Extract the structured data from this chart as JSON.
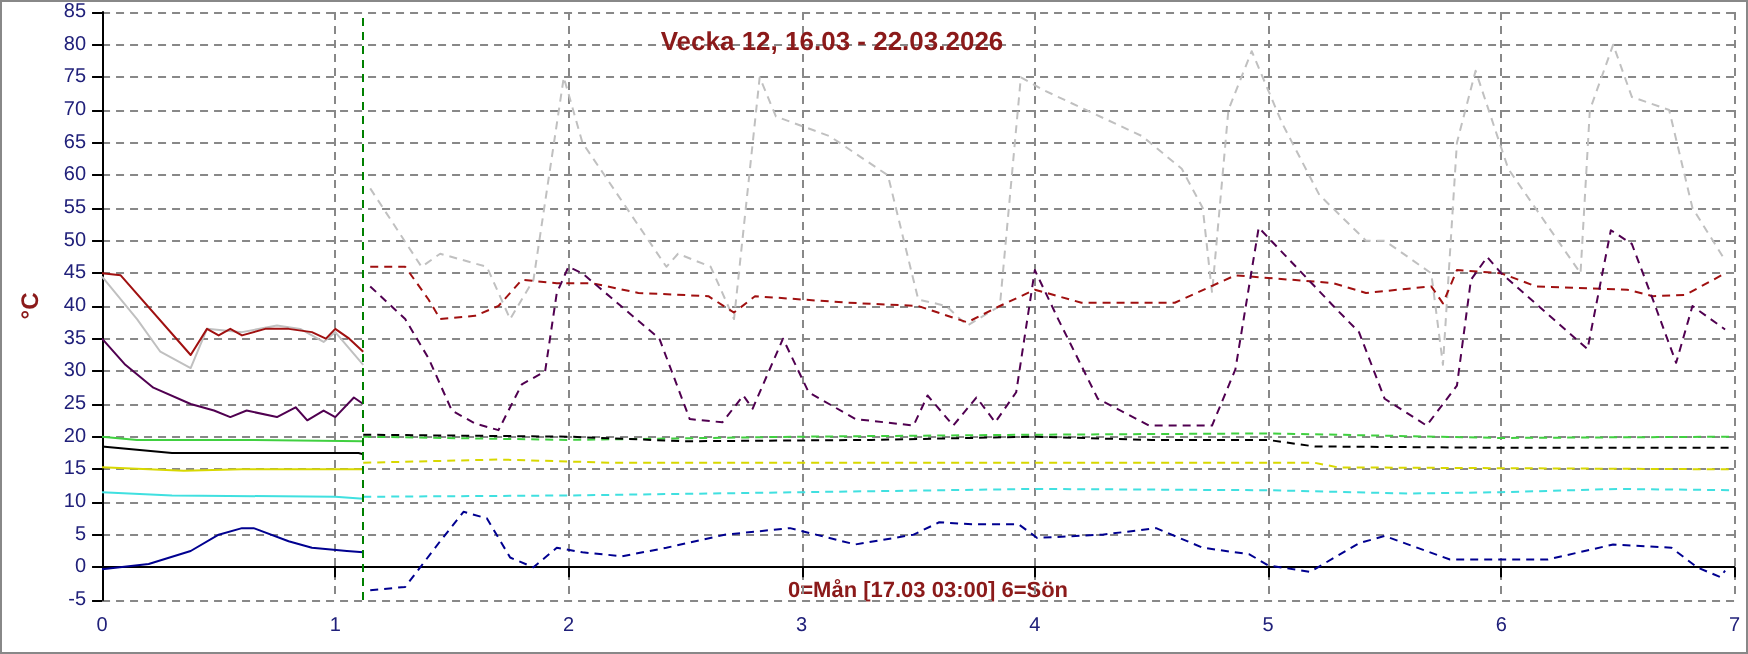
{
  "chart_data": {
    "type": "line",
    "title": "Vecka 12, 16.03 - 22.03.2026",
    "ylabel": "°C",
    "annotations": [
      "0=Mån [17.03 03:00] 6=Sön"
    ],
    "xlim": [
      0,
      7
    ],
    "xticks": [
      0,
      1,
      2,
      3,
      4,
      5,
      6,
      7
    ],
    "ylim": [
      -5,
      85
    ],
    "yticks": [
      -5,
      0,
      5,
      10,
      15,
      20,
      25,
      30,
      35,
      40,
      45,
      50,
      55,
      60,
      65,
      70,
      75,
      80,
      85
    ],
    "grid": true,
    "marker": "none",
    "ref_lines": [
      {
        "axis": "x",
        "value": 1.12,
        "label": null,
        "color": "#008000",
        "line_style": "dashed"
      }
    ],
    "series": [
      {
        "color": "#c0c0c0",
        "line_style": "solid",
        "x": [
          0,
          0.15,
          0.25,
          0.38,
          0.45,
          0.6,
          0.75,
          0.85,
          0.95,
          1.0,
          1.12
        ],
        "values": [
          44.5,
          38,
          33,
          30.5,
          36.5,
          36,
          37,
          36.5,
          34.5,
          36,
          31
        ]
      },
      {
        "color": "#a01010",
        "line_style": "solid",
        "x": [
          0,
          0.08,
          0.38,
          0.45,
          0.5,
          0.55,
          0.6,
          0.7,
          0.8,
          0.9,
          0.96,
          1.0,
          1.06,
          1.12
        ],
        "values": [
          45,
          44.7,
          32.5,
          36.5,
          35.5,
          36.5,
          35.5,
          36.5,
          36.5,
          36,
          35,
          36.5,
          35,
          33
        ]
      },
      {
        "color": "#500050",
        "line_style": "solid",
        "x": [
          0,
          0.1,
          0.22,
          0.38,
          0.48,
          0.55,
          0.62,
          0.75,
          0.83,
          0.88,
          0.95,
          1.0,
          1.08,
          1.12
        ],
        "values": [
          35,
          31,
          27.5,
          25,
          24,
          23,
          24,
          23,
          24.5,
          22.5,
          24,
          23,
          26,
          25
        ]
      },
      {
        "color": "#40d040",
        "line_style": "solid",
        "x": [
          0,
          0.15,
          0.6,
          1.12
        ],
        "values": [
          20,
          19.5,
          19.5,
          19.3
        ]
      },
      {
        "color": "#000000",
        "line_style": "solid",
        "x": [
          0,
          0.3,
          1.1,
          1.12
        ],
        "values": [
          18.5,
          17.5,
          17.5,
          17.3
        ]
      },
      {
        "color": "#d8d800",
        "line_style": "solid",
        "x": [
          0,
          0.35,
          0.6,
          1.12
        ],
        "values": [
          15.3,
          14.8,
          15,
          15
        ]
      },
      {
        "color": "#40e0e0",
        "line_style": "solid",
        "x": [
          0,
          0.3,
          1.0,
          1.12
        ],
        "values": [
          11.5,
          11,
          10.8,
          10.5
        ]
      },
      {
        "color": "#000090",
        "line_style": "solid",
        "x": [
          0,
          0.2,
          0.38,
          0.5,
          0.6,
          0.65,
          0.8,
          0.9,
          1.05,
          1.12
        ],
        "values": [
          -0.3,
          0.5,
          2.5,
          5,
          6,
          6,
          4,
          3,
          2.5,
          2.3
        ]
      },
      {
        "color": "#c0c0c0",
        "line_style": "dashed",
        "x": [
          1.15,
          1.37,
          1.45,
          1.65,
          1.75,
          1.85,
          1.98,
          2.06,
          2.42,
          2.47,
          2.61,
          2.71,
          2.82,
          2.89,
          3.12,
          3.37,
          3.5,
          3.62,
          3.71,
          3.85,
          3.94,
          4.04,
          4.46,
          4.63,
          4.72,
          4.76,
          4.83,
          4.93,
          5.06,
          5.22,
          5.42,
          5.5,
          5.7,
          5.75,
          5.81,
          5.89,
          6.03,
          6.34,
          6.38,
          6.48,
          6.56,
          6.72,
          6.82,
          6.96
        ],
        "values": [
          58,
          46,
          48,
          46,
          38,
          44,
          75,
          65,
          46,
          48,
          46,
          38,
          75,
          69,
          66,
          60,
          41,
          40,
          37,
          40,
          75,
          73,
          66,
          61,
          55,
          42,
          70,
          79,
          68,
          57,
          50,
          50,
          45,
          31,
          65,
          76,
          61,
          45,
          70,
          80,
          72,
          70,
          55,
          47
        ]
      },
      {
        "color": "#a01010",
        "line_style": "dashed",
        "x": [
          1.15,
          1.3,
          1.4,
          1.45,
          1.6,
          1.7,
          1.8,
          1.95,
          2.1,
          2.3,
          2.6,
          2.71,
          2.8,
          3.0,
          3.2,
          3.5,
          3.71,
          3.85,
          4.0,
          4.2,
          4.6,
          4.86,
          5.28,
          5.42,
          5.7,
          5.75,
          5.81,
          6.0,
          6.15,
          6.54,
          6.65,
          6.79,
          6.96
        ],
        "values": [
          46,
          46,
          41,
          38,
          38.5,
          40,
          44,
          43.5,
          43.5,
          42,
          41.5,
          39,
          41.5,
          41,
          40.5,
          40,
          37.5,
          40,
          42.5,
          40.5,
          40.5,
          44.7,
          43.5,
          42,
          43,
          40.4,
          45.5,
          45,
          43,
          42.5,
          41.5,
          41.7,
          45
        ]
      },
      {
        "color": "#500050",
        "line_style": "dashed",
        "x": [
          1.15,
          1.3,
          1.4,
          1.5,
          1.6,
          1.7,
          1.8,
          1.9,
          1.95,
          2.0,
          2.06,
          2.39,
          2.52,
          2.66,
          2.75,
          2.79,
          2.92,
          3.03,
          3.23,
          3.48,
          3.54,
          3.65,
          3.75,
          3.83,
          3.92,
          4.0,
          4.1,
          4.27,
          4.49,
          4.76,
          4.86,
          4.96,
          5.28,
          5.39,
          5.5,
          5.68,
          5.81,
          5.87,
          5.94,
          6.0,
          6.37,
          6.47,
          6.56,
          6.65,
          6.75,
          6.82,
          6.96
        ],
        "values": [
          43,
          38,
          32,
          24,
          22,
          21,
          28,
          30,
          42,
          46,
          45,
          35,
          22.7,
          22.2,
          26.3,
          24.3,
          35,
          26.8,
          22.7,
          21.7,
          26.3,
          21.7,
          26,
          22.2,
          26.8,
          45.5,
          38,
          25.8,
          21.7,
          21.7,
          30.3,
          52,
          40,
          36,
          25.8,
          21.7,
          27.8,
          44,
          47.5,
          45,
          33.4,
          51.6,
          49.5,
          41,
          31.3,
          40,
          36.4
        ]
      },
      {
        "color": "#40d040",
        "line_style": "dashed",
        "x": [
          1.12,
          2,
          3,
          4,
          5,
          6,
          7
        ],
        "values": [
          20,
          19.5,
          20,
          20.3,
          20.5,
          19.8,
          20
        ]
      },
      {
        "color": "#000000",
        "line_style": "dashed",
        "x": [
          1.12,
          2,
          2.5,
          3.3,
          4,
          4.5,
          5,
          5.2,
          6,
          7
        ],
        "values": [
          20.3,
          20,
          19.3,
          19.5,
          20,
          19.5,
          19.5,
          18.5,
          18.3,
          18.3
        ]
      },
      {
        "color": "#d8d800",
        "line_style": "dashed",
        "x": [
          1.12,
          1.7,
          2.2,
          5.2,
          5.3,
          7
        ],
        "values": [
          16,
          16.5,
          16,
          16,
          15.3,
          15
        ]
      },
      {
        "color": "#40e0e0",
        "line_style": "dashed",
        "x": [
          1.12,
          2,
          3,
          4,
          5,
          5.6,
          6,
          6.5,
          7
        ],
        "values": [
          10.8,
          11,
          11.5,
          12,
          11.8,
          11.3,
          11.5,
          12,
          11.8
        ]
      },
      {
        "color": "#000090",
        "line_style": "dashed",
        "x": [
          1.15,
          1.3,
          1.45,
          1.55,
          1.65,
          1.75,
          1.85,
          1.95,
          2.06,
          2.23,
          2.42,
          2.67,
          2.95,
          3.23,
          3.48,
          3.59,
          3.73,
          3.93,
          4.01,
          4.29,
          4.52,
          4.72,
          4.92,
          5.0,
          5.18,
          5.39,
          5.5,
          5.78,
          6.2,
          6.48,
          6.73,
          6.84,
          6.94,
          6.96
        ],
        "values": [
          -3.5,
          -3,
          4,
          8.5,
          7.5,
          1.5,
          0,
          3,
          2.3,
          1.7,
          3,
          5,
          6,
          3.5,
          5,
          6.9,
          6.6,
          6.6,
          4.5,
          5,
          6,
          3,
          2,
          0.3,
          -0.7,
          3.7,
          4.8,
          1.2,
          1.2,
          3.5,
          3,
          0,
          -1.5,
          -0.5
        ]
      }
    ]
  }
}
